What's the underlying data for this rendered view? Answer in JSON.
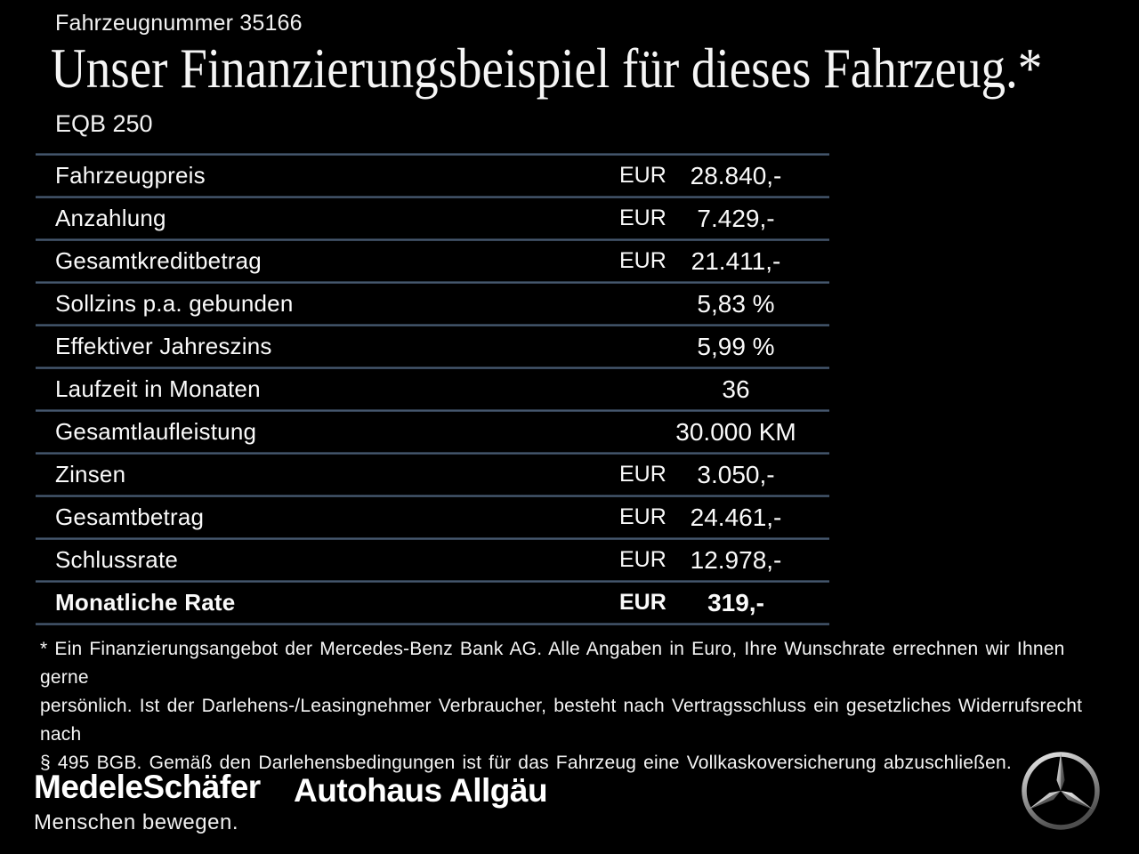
{
  "header": {
    "vehicle_number": "Fahrzeugnummer 35166",
    "title": "Unser Finanzierungsbeispiel für dieses Fahrzeug.*",
    "model": "EQB 250"
  },
  "table": {
    "rows": [
      {
        "label": "Fahrzeugpreis",
        "currency": "EUR",
        "value": "28.840,-",
        "bold": false
      },
      {
        "label": "Anzahlung",
        "currency": "EUR",
        "value": "7.429,-",
        "bold": false
      },
      {
        "label": "Gesamtkreditbetrag",
        "currency": "EUR",
        "value": "21.411,-",
        "bold": false
      },
      {
        "label": "Sollzins p.a. gebunden",
        "currency": "",
        "value": "5,83 %",
        "bold": false
      },
      {
        "label": "Effektiver Jahreszins",
        "currency": "",
        "value": "5,99 %",
        "bold": false
      },
      {
        "label": "Laufzeit in Monaten",
        "currency": "",
        "value": "36",
        "bold": false
      },
      {
        "label": "Gesamtlaufleistung",
        "currency": "",
        "value": "30.000 KM",
        "bold": false
      },
      {
        "label": "Zinsen",
        "currency": "EUR",
        "value": "3.050,-",
        "bold": false
      },
      {
        "label": "Gesamtbetrag",
        "currency": "EUR",
        "value": "24.461,-",
        "bold": false
      },
      {
        "label": "Schlussrate",
        "currency": "EUR",
        "value": "12.978,-",
        "bold": false
      },
      {
        "label": "Monatliche Rate",
        "currency": "EUR",
        "value": "319,-",
        "bold": true
      }
    ]
  },
  "footnote": {
    "lines": [
      "* Ein Finanzierungsangebot der Mercedes-Benz Bank AG. Alle Angaben in Euro, Ihre Wunschrate errechnen wir Ihnen gerne",
      "persönlich. Ist der Darlehens-/Leasingnehmer Verbraucher, besteht nach Vertragsschluss ein gesetzliches Widerrufsrecht nach",
      "§ 495 BGB. Gemäß den Darlehensbedingungen ist für das Fahrzeug eine Vollkaskoversicherung abzuschließen."
    ]
  },
  "footer": {
    "dealer_logo": "MedeleSchäfer",
    "dealer_tagline": "Menschen bewegen.",
    "dealer_name_secondary": "Autohaus Allgäu",
    "brand_icon": "mercedes-star-icon"
  },
  "colors": {
    "background": "#000000",
    "text": "#ffffff",
    "divider": "#4e6179"
  }
}
